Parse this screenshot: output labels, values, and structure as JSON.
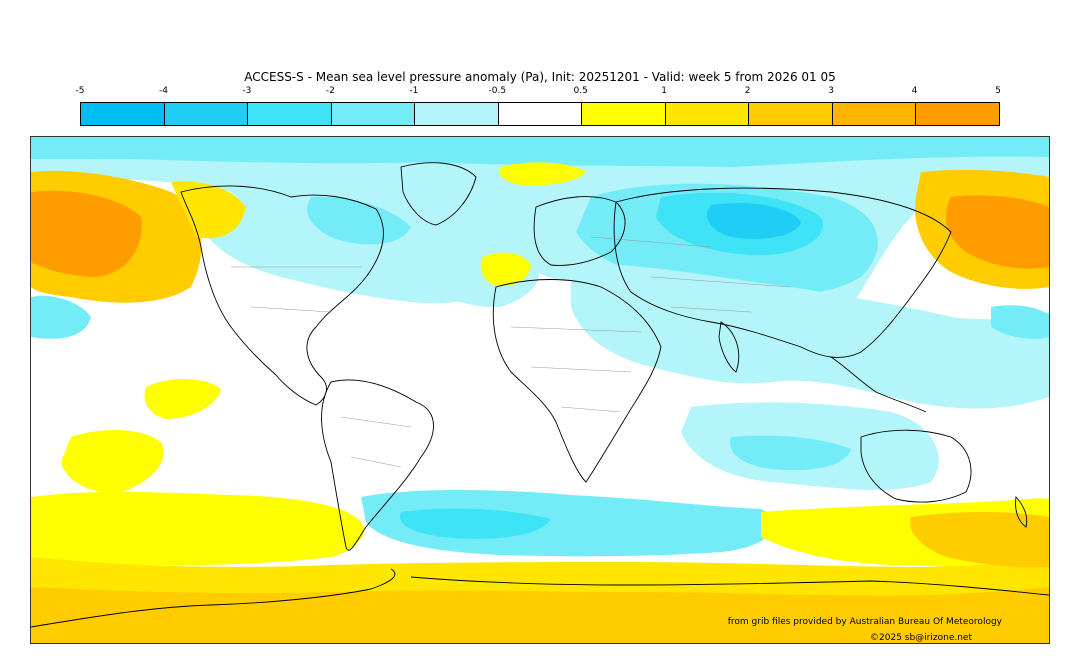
{
  "title": "ACCESS-S - Mean sea level pressure anomaly (Pa), Init: 20251201 - Valid: week 5 from 2026 01 05",
  "legend": {
    "ticks": [
      "-5",
      "-4",
      "-3",
      "-2",
      "-1",
      "-0.5",
      "0.5",
      "1",
      "2",
      "3",
      "4",
      "5"
    ],
    "colors": [
      "#00bdf2",
      "#20cdf5",
      "#3ee3f6",
      "#74ecf8",
      "#b4f5fa",
      "#ffffff",
      "#ffff00",
      "#ffe600",
      "#ffcc00",
      "#ffb400",
      "#ff9c00"
    ]
  },
  "map": {
    "projection": "equirectangular",
    "palette": {
      "neg_strong": "#20cdf5",
      "neg_mid": "#3ee3f6",
      "neg_light": "#74ecf8",
      "neg_faint": "#b4f5fa",
      "neutral": "#ffffff",
      "pos_yellow": "#ffff00",
      "pos_gold": "#ffe600",
      "pos_amber": "#ffcc00",
      "pos_orange": "#ffb400",
      "pos_deep": "#ff9c00"
    }
  },
  "credits": {
    "source": "from grib files provided by Australian Bureau Of Meteorology",
    "copyright": "©2025 sb@irizone.net"
  }
}
